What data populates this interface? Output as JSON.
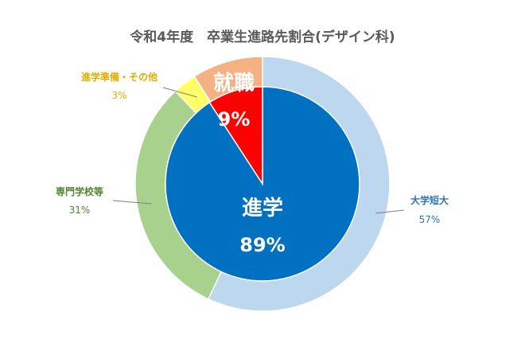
{
  "chart_data": {
    "type": "pie",
    "title": "令和4年度　卒業生進路先割合(デザイン科)",
    "inner": {
      "slices": [
        {
          "label": "進学",
          "value": 89,
          "display": "89%",
          "color": "#0070C0"
        },
        {
          "label": "就職",
          "value": 9,
          "display": "9%",
          "color": "#FF0000"
        }
      ]
    },
    "outer": {
      "slices": [
        {
          "label": "大学短大",
          "value": 57,
          "display": "57%",
          "color": "#BDD7EE",
          "text_color": "#2E75B6"
        },
        {
          "label": "専門学校等",
          "value": 31,
          "display": "31%",
          "color": "#A9D18E",
          "text_color": "#548235"
        },
        {
          "label": "進学準備・その他",
          "value": 3,
          "display": "3%",
          "color": "#FFFF66",
          "text_color": "#E5AC00"
        },
        {
          "label": "",
          "value": 9,
          "display": "",
          "color": "#F4B183",
          "text_color": "#ffffff"
        }
      ]
    },
    "legend": "none"
  }
}
